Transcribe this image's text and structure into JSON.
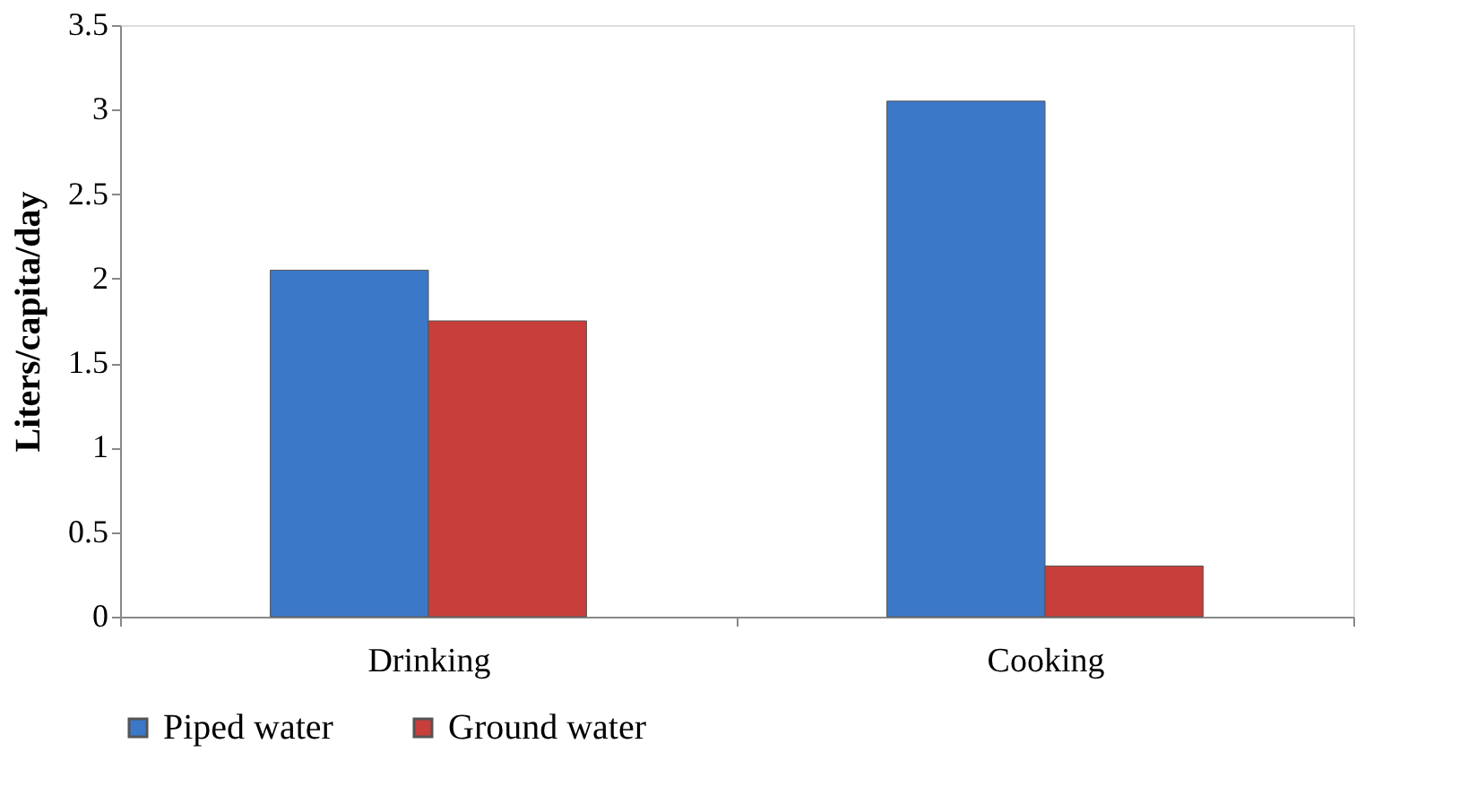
{
  "chart_data": {
    "type": "bar",
    "ylabel": "Liters/capita/day",
    "categories": [
      "Drinking",
      "Cooking"
    ],
    "series": [
      {
        "name": "Piped water",
        "color": "#3c78c8",
        "values": [
          2.05,
          3.05
        ]
      },
      {
        "name": "Ground water",
        "color": "#c83e3a",
        "values": [
          1.75,
          0.3
        ]
      }
    ],
    "ylim": [
      0,
      3.5
    ],
    "yticks": [
      0,
      0.5,
      1,
      1.5,
      2,
      2.5,
      3,
      3.5
    ],
    "grid": false,
    "legend": "bottom"
  }
}
